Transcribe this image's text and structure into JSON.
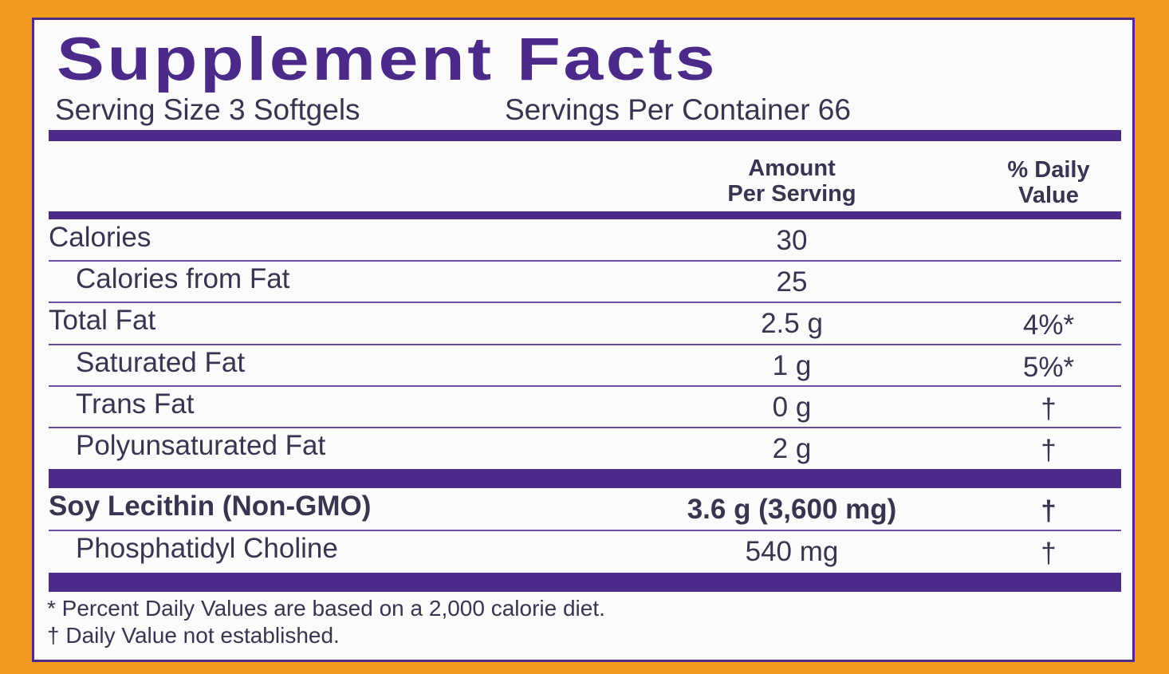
{
  "title": "Supplement Facts",
  "serving_size": "Serving Size 3 Softgels",
  "servings_per_container": "Servings Per Container 66",
  "header": {
    "amount": [
      "Amount",
      "Per Serving"
    ],
    "daily_value": [
      "% Daily",
      "Value"
    ]
  },
  "nutrients": [
    {
      "label": "Calories",
      "amount": "30",
      "sub": [
        {
          "label": "Calories from Fat",
          "amount": "25"
        }
      ]
    },
    {
      "label": "Total Fat",
      "amount": "2.5 g",
      "dv": "4%*",
      "sub": [
        {
          "label": "Saturated Fat",
          "amount": "1 g",
          "dv": "5%*"
        },
        {
          "label": "Trans Fat",
          "amount": "0 g",
          "dv": "†"
        },
        {
          "label": "Polyunsaturated Fat",
          "amount": "2 g",
          "dv": "†"
        }
      ]
    }
  ],
  "ingredients": [
    {
      "label": "Soy Lecithin (Non-GMO)",
      "amount": "3.6 g (3,600 mg)",
      "dv": "†",
      "sub": [
        {
          "label": "Phosphatidyl Choline",
          "amount": "540 mg",
          "dv": "†"
        }
      ]
    }
  ],
  "footnotes": [
    "* Percent Daily Values are based on a 2,000 calorie diet.",
    "† Daily Value not established."
  ]
}
